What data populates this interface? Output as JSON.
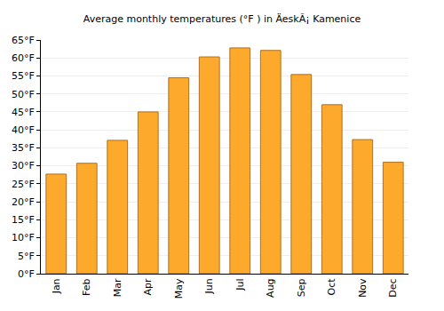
{
  "chart_data": {
    "type": "bar",
    "title": "Average monthly temperatures (°F ) in ÄeskÃ¡ Kamenice",
    "categories": [
      "Jan",
      "Feb",
      "Mar",
      "Apr",
      "May",
      "Jun",
      "Jul",
      "Aug",
      "Sep",
      "Oct",
      "Nov",
      "Dec"
    ],
    "values": [
      27.7,
      30.7,
      37.1,
      45.0,
      54.5,
      60.3,
      62.8,
      62.1,
      55.4,
      47.0,
      37.3,
      31.0
    ],
    "color": "#fca92c",
    "ylim": [
      0,
      65
    ],
    "yticks": [
      {
        "value": 0,
        "label": "0°F"
      },
      {
        "value": 5,
        "label": "5°F"
      },
      {
        "value": 10,
        "label": "10°F"
      },
      {
        "value": 15,
        "label": "15°F"
      },
      {
        "value": 20,
        "label": "20°F"
      },
      {
        "value": 25,
        "label": "25°F"
      },
      {
        "value": 30,
        "label": "30°F"
      },
      {
        "value": 35,
        "label": "35°F"
      },
      {
        "value": 40,
        "label": "40°F"
      },
      {
        "value": 45,
        "label": "45°F"
      },
      {
        "value": 50,
        "label": "50°F"
      },
      {
        "value": 55,
        "label": "55°F"
      },
      {
        "value": 60,
        "label": "60°F"
      },
      {
        "value": 65,
        "label": "65°F"
      }
    ],
    "grid": true
  }
}
